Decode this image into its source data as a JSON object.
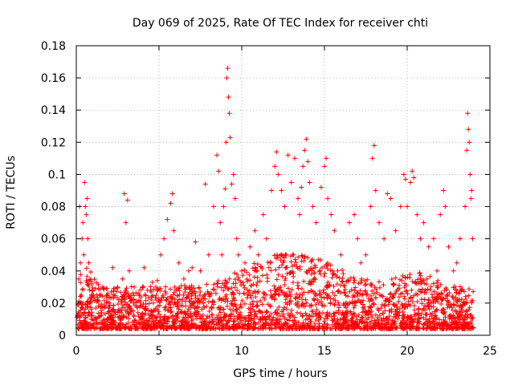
{
  "chart_data": {
    "type": "scatter",
    "title": "Day 069 of 2025, Rate Of TEC Index for receiver chti",
    "xlabel": "GPS time / hours",
    "ylabel": "ROTI / TECUs",
    "xlim": [
      0,
      25
    ],
    "ylim": [
      0,
      0.18
    ],
    "xticks": [
      0,
      5,
      10,
      15,
      20,
      25
    ],
    "yticks": [
      0,
      0.02,
      0.04,
      0.06,
      0.08,
      0.1,
      0.12,
      0.14,
      0.16,
      0.18
    ],
    "xtick_labels": [
      "0",
      "5",
      "10",
      "15",
      "20",
      "25"
    ],
    "ytick_labels": [
      "0",
      "0.02",
      "0.04",
      "0.06",
      "0.08",
      "0.1",
      "0.12",
      "0.14",
      "0.16",
      "0.18"
    ],
    "grid": true,
    "marker": "+",
    "color": "#ff0000",
    "series": [
      {
        "points": [
          [
            0.1,
            0.012
          ],
          [
            0.15,
            0.035
          ],
          [
            0.2,
            0.08
          ],
          [
            0.25,
            0.045
          ],
          [
            0.3,
            0.025
          ],
          [
            0.35,
            0.06
          ],
          [
            0.4,
            0.07
          ],
          [
            0.45,
            0.05
          ],
          [
            0.5,
            0.095
          ],
          [
            0.55,
            0.08
          ],
          [
            0.6,
            0.075
          ],
          [
            0.65,
            0.085
          ],
          [
            0.7,
            0.06
          ],
          [
            0.75,
            0.045
          ],
          [
            0.8,
            0.02
          ],
          [
            1.0,
            0.028
          ],
          [
            1.3,
            0.022
          ],
          [
            1.6,
            0.03
          ],
          [
            1.9,
            0.025
          ],
          [
            2.2,
            0.042
          ],
          [
            2.5,
            0.03
          ],
          [
            2.8,
            0.035
          ],
          [
            2.9,
            0.088
          ],
          [
            3.0,
            0.07
          ],
          [
            3.1,
            0.084
          ],
          [
            3.2,
            0.04
          ],
          [
            3.5,
            0.03
          ],
          [
            3.8,
            0.025
          ],
          [
            4.0,
            0.03
          ],
          [
            4.1,
            0.042
          ],
          [
            4.3,
            0.028
          ],
          [
            4.6,
            0.033
          ],
          [
            4.9,
            0.034
          ],
          [
            5.1,
            0.05
          ],
          [
            5.3,
            0.06
          ],
          [
            5.5,
            0.072
          ],
          [
            5.7,
            0.082
          ],
          [
            5.8,
            0.088
          ],
          [
            5.9,
            0.065
          ],
          [
            6.2,
            0.045
          ],
          [
            6.5,
            0.035
          ],
          [
            6.8,
            0.04
          ],
          [
            7.0,
            0.042
          ],
          [
            7.2,
            0.058
          ],
          [
            7.5,
            0.04
          ],
          [
            7.8,
            0.094
          ],
          [
            8.0,
            0.05
          ],
          [
            8.3,
            0.08
          ],
          [
            8.5,
            0.112
          ],
          [
            8.6,
            0.102
          ],
          [
            8.7,
            0.07
          ],
          [
            8.8,
            0.05
          ],
          [
            8.9,
            0.08
          ],
          [
            9.0,
            0.091
          ],
          [
            9.05,
            0.12
          ],
          [
            9.1,
            0.16
          ],
          [
            9.15,
            0.166
          ],
          [
            9.2,
            0.148
          ],
          [
            9.25,
            0.138
          ],
          [
            9.3,
            0.123
          ],
          [
            9.4,
            0.094
          ],
          [
            9.5,
            0.1
          ],
          [
            9.6,
            0.085
          ],
          [
            9.7,
            0.06
          ],
          [
            9.8,
            0.05
          ],
          [
            10.0,
            0.04
          ],
          [
            10.2,
            0.045
          ],
          [
            10.5,
            0.055
          ],
          [
            10.8,
            0.065
          ],
          [
            11.0,
            0.05
          ],
          [
            11.3,
            0.075
          ],
          [
            11.5,
            0.06
          ],
          [
            11.8,
            0.09
          ],
          [
            12.0,
            0.105
          ],
          [
            12.1,
            0.114
          ],
          [
            12.2,
            0.1
          ],
          [
            12.4,
            0.09
          ],
          [
            12.6,
            0.08
          ],
          [
            12.8,
            0.112
          ],
          [
            13.0,
            0.095
          ],
          [
            13.2,
            0.11
          ],
          [
            13.4,
            0.085
          ],
          [
            13.5,
            0.075
          ],
          [
            13.6,
            0.092
          ],
          [
            13.7,
            0.105
          ],
          [
            13.8,
            0.115
          ],
          [
            13.9,
            0.122
          ],
          [
            14.0,
            0.108
          ],
          [
            14.1,
            0.095
          ],
          [
            14.3,
            0.08
          ],
          [
            14.5,
            0.07
          ],
          [
            14.8,
            0.092
          ],
          [
            15.0,
            0.105
          ],
          [
            15.1,
            0.11
          ],
          [
            15.2,
            0.085
          ],
          [
            15.4,
            0.075
          ],
          [
            15.6,
            0.065
          ],
          [
            15.8,
            0.04
          ],
          [
            16.0,
            0.05
          ],
          [
            16.5,
            0.07
          ],
          [
            16.8,
            0.075
          ],
          [
            17.0,
            0.06
          ],
          [
            17.2,
            0.045
          ],
          [
            17.5,
            0.05
          ],
          [
            17.8,
            0.08
          ],
          [
            17.9,
            0.11
          ],
          [
            18.0,
            0.118
          ],
          [
            18.1,
            0.09
          ],
          [
            18.3,
            0.07
          ],
          [
            18.6,
            0.06
          ],
          [
            18.8,
            0.088
          ],
          [
            19.0,
            0.085
          ],
          [
            19.3,
            0.065
          ],
          [
            19.6,
            0.08
          ],
          [
            19.8,
            0.1
          ],
          [
            19.9,
            0.097
          ],
          [
            20.0,
            0.08
          ],
          [
            20.2,
            0.095
          ],
          [
            20.3,
            0.102
          ],
          [
            20.4,
            0.098
          ],
          [
            20.6,
            0.075
          ],
          [
            20.8,
            0.06
          ],
          [
            21.0,
            0.07
          ],
          [
            21.3,
            0.055
          ],
          [
            21.6,
            0.06
          ],
          [
            21.8,
            0.04
          ],
          [
            22.0,
            0.075
          ],
          [
            22.2,
            0.09
          ],
          [
            22.3,
            0.08
          ],
          [
            22.5,
            0.055
          ],
          [
            22.8,
            0.04
          ],
          [
            23.0,
            0.045
          ],
          [
            23.2,
            0.06
          ],
          [
            23.5,
            0.08
          ],
          [
            23.6,
            0.115
          ],
          [
            23.65,
            0.138
          ],
          [
            23.7,
            0.128
          ],
          [
            23.75,
            0.12
          ],
          [
            23.8,
            0.1
          ],
          [
            23.85,
            0.085
          ],
          [
            23.9,
            0.09
          ],
          [
            23.95,
            0.06
          ]
        ]
      }
    ]
  }
}
